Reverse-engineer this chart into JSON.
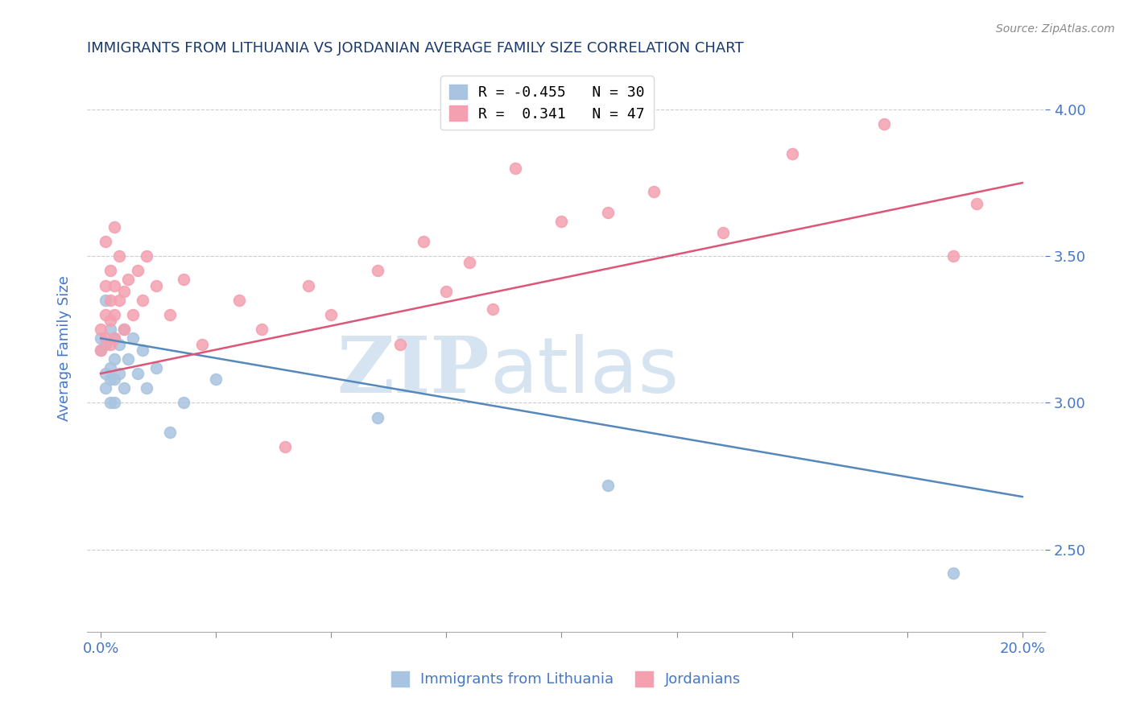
{
  "title": "IMMIGRANTS FROM LITHUANIA VS JORDANIAN AVERAGE FAMILY SIZE CORRELATION CHART",
  "source": "Source: ZipAtlas.com",
  "ylabel": "Average Family Size",
  "xlabel_ticks_shown": [
    "0.0%",
    "20.0%"
  ],
  "xlabel_vals_shown": [
    0.0,
    0.2
  ],
  "xlabel_minor_vals": [
    0.025,
    0.05,
    0.075,
    0.1,
    0.125,
    0.15,
    0.175
  ],
  "xlabel_all_vals": [
    0.0,
    0.025,
    0.05,
    0.075,
    0.1,
    0.125,
    0.15,
    0.175,
    0.2
  ],
  "ylabel_ticks": [
    2.5,
    3.0,
    3.5,
    4.0
  ],
  "ylim": [
    2.22,
    4.15
  ],
  "xlim": [
    -0.003,
    0.205
  ],
  "watermark": "ZIPatlas",
  "legend_entries": [
    {
      "label": "R = -0.455   N = 30",
      "color": "#a8c4e0"
    },
    {
      "label": "R =  0.341   N = 47",
      "color": "#f4a0b0"
    }
  ],
  "legend_bottom": [
    {
      "label": "Immigrants from Lithuania",
      "color": "#a8c4e0"
    },
    {
      "label": "Jordanians",
      "color": "#f4a0b0"
    }
  ],
  "scatter_blue": {
    "x": [
      0.0,
      0.0,
      0.001,
      0.001,
      0.001,
      0.001,
      0.002,
      0.002,
      0.002,
      0.002,
      0.003,
      0.003,
      0.003,
      0.003,
      0.004,
      0.004,
      0.005,
      0.005,
      0.006,
      0.007,
      0.008,
      0.009,
      0.01,
      0.012,
      0.015,
      0.018,
      0.025,
      0.06,
      0.11,
      0.185
    ],
    "y": [
      3.22,
      3.18,
      3.35,
      3.2,
      3.1,
      3.05,
      3.25,
      3.12,
      3.08,
      3.0,
      3.22,
      3.15,
      3.08,
      3.0,
      3.2,
      3.1,
      3.25,
      3.05,
      3.15,
      3.22,
      3.1,
      3.18,
      3.05,
      3.12,
      2.9,
      3.0,
      3.08,
      2.95,
      2.72,
      2.42
    ]
  },
  "scatter_pink": {
    "x": [
      0.0,
      0.0,
      0.001,
      0.001,
      0.001,
      0.001,
      0.002,
      0.002,
      0.002,
      0.002,
      0.003,
      0.003,
      0.003,
      0.003,
      0.004,
      0.004,
      0.005,
      0.005,
      0.006,
      0.007,
      0.008,
      0.009,
      0.01,
      0.012,
      0.015,
      0.018,
      0.022,
      0.03,
      0.035,
      0.04,
      0.045,
      0.05,
      0.06,
      0.065,
      0.07,
      0.075,
      0.08,
      0.085,
      0.09,
      0.1,
      0.11,
      0.12,
      0.135,
      0.15,
      0.17,
      0.185,
      0.19
    ],
    "y": [
      3.25,
      3.18,
      3.4,
      3.55,
      3.3,
      3.22,
      3.45,
      3.35,
      3.28,
      3.2,
      3.6,
      3.4,
      3.3,
      3.22,
      3.5,
      3.35,
      3.38,
      3.25,
      3.42,
      3.3,
      3.45,
      3.35,
      3.5,
      3.4,
      3.3,
      3.42,
      3.2,
      3.35,
      3.25,
      2.85,
      3.4,
      3.3,
      3.45,
      3.2,
      3.55,
      3.38,
      3.48,
      3.32,
      3.8,
      3.62,
      3.65,
      3.72,
      3.58,
      3.85,
      3.95,
      3.5,
      3.68
    ]
  },
  "line_blue": {
    "x0": 0.0,
    "x1": 0.2,
    "y0": 3.22,
    "y1": 2.68
  },
  "line_pink": {
    "x0": 0.0,
    "x1": 0.2,
    "y0": 3.1,
    "y1": 3.75
  },
  "title_color": "#1a3a6b",
  "axis_label_color": "#4477cc",
  "tick_color": "#4477cc",
  "grid_color": "#cccccc",
  "line_blue_color": "#5588bb",
  "line_pink_color": "#dd5577",
  "dot_blue_color": "#a8c4e0",
  "dot_pink_color": "#f4a0b0",
  "watermark_color": "#d5e4f0",
  "background_color": "#ffffff"
}
